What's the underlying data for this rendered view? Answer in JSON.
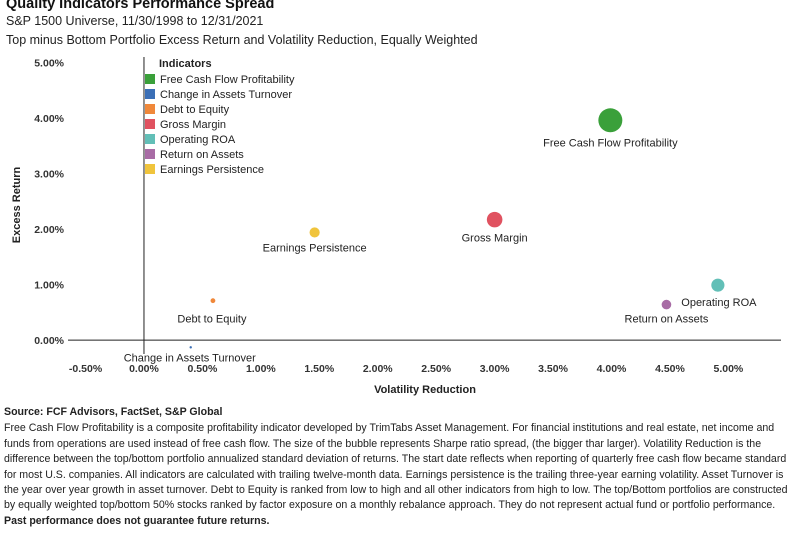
{
  "header": {
    "title": "Quality Indicators Performance Spread",
    "subtitle": "S&P 1500 Universe, 11/30/1998 to 12/31/2021",
    "subtitle2": "Top minus Bottom Portfolio Excess Return and Volatility Reduction, Equally Weighted"
  },
  "chart_data": {
    "type": "scatter",
    "xlabel": "Volatility Reduction",
    "ylabel": "Excess Return",
    "xlim": [
      -0.0065,
      0.0545
    ],
    "ylim": [
      -0.0025,
      0.051
    ],
    "x_ticks": [
      -0.005,
      0.0,
      0.005,
      0.01,
      0.015,
      0.02,
      0.025,
      0.03,
      0.035,
      0.04,
      0.045,
      0.05
    ],
    "x_tick_labels": [
      "-0.50%",
      "0.00%",
      "0.50%",
      "1.00%",
      "1.50%",
      "2.00%",
      "2.50%",
      "3.00%",
      "3.50%",
      "4.00%",
      "4.50%",
      "5.00%"
    ],
    "y_ticks": [
      0.0,
      0.01,
      0.02,
      0.03,
      0.04,
      0.05
    ],
    "y_tick_labels": [
      "0.00%",
      "1.00%",
      "2.00%",
      "3.00%",
      "4.00%",
      "5.00%"
    ],
    "grid": false,
    "legend": {
      "title": "Indicators",
      "placement": "top-left"
    },
    "series": [
      {
        "name": "Free Cash Flow Profitability",
        "color": "#3aa03a",
        "x": 0.0399,
        "y": 0.0396,
        "sharpe_size": 1.0
      },
      {
        "name": "Change in Assets Turnover",
        "color": "#3b6fb6",
        "x": 0.004,
        "y": -0.0013,
        "sharpe_size": 0.01
      },
      {
        "name": "Debt to Equity",
        "color": "#f0883a",
        "x": 0.0059,
        "y": 0.0071,
        "sharpe_size": 0.04
      },
      {
        "name": "Gross Margin",
        "color": "#e05260",
        "x": 0.03,
        "y": 0.0217,
        "sharpe_size": 0.42
      },
      {
        "name": "Operating ROA",
        "color": "#62bfb7",
        "x": 0.0491,
        "y": 0.0099,
        "sharpe_size": 0.3
      },
      {
        "name": "Return on Assets",
        "color": "#a86ca5",
        "x": 0.0447,
        "y": 0.0064,
        "sharpe_size": 0.16
      },
      {
        "name": "Earnings Persistence",
        "color": "#f0c43c",
        "x": 0.0146,
        "y": 0.0194,
        "sharpe_size": 0.18
      }
    ],
    "point_labels": [
      {
        "text": "Free Cash Flow Profitability",
        "series": 0
      },
      {
        "text": "Change in Assets Turnover",
        "series": 1
      },
      {
        "text": "Debt to Equity",
        "series": 2
      },
      {
        "text": "Gross Margin",
        "series": 3
      },
      {
        "text": "Operating ROA",
        "series": 4
      },
      {
        "text": "Return on Assets",
        "series": 5
      },
      {
        "text": "Earnings Persistence",
        "series": 6
      }
    ]
  },
  "footer": {
    "source": "Source: FCF Advisors, FactSet, S&P Global",
    "note": "Free Cash Flow Profitability is a composite profitability indicator developed by TrimTabs Asset Management. For financial institutions and real estate, net income and funds from operations are used instead of free cash flow. The size of the bubble represents Sharpe ratio spread, (the bigger thar larger). Volatility Reduction is the difference between the top/bottom portfolio annualized standard deviation of returns. The start date reflects when reporting of quarterly free cash flow became standard for most U.S. companies. All indicators are calculated with trailing twelve-month data. Earnings persistence is the trailing three-year earning volatility. Asset Turnover is the year over year growth in asset turnover. Debt to Equity is ranked from low to high and all other indicators from high to low. The top/Bottom portfolios are constructed by equally weighted top/bottom 50% stocks ranked by factor exposure on a monthly rebalance approach. They do not represent actual fund or portfolio performance.",
    "disclaimer": "Past performance does not guarantee future returns."
  }
}
